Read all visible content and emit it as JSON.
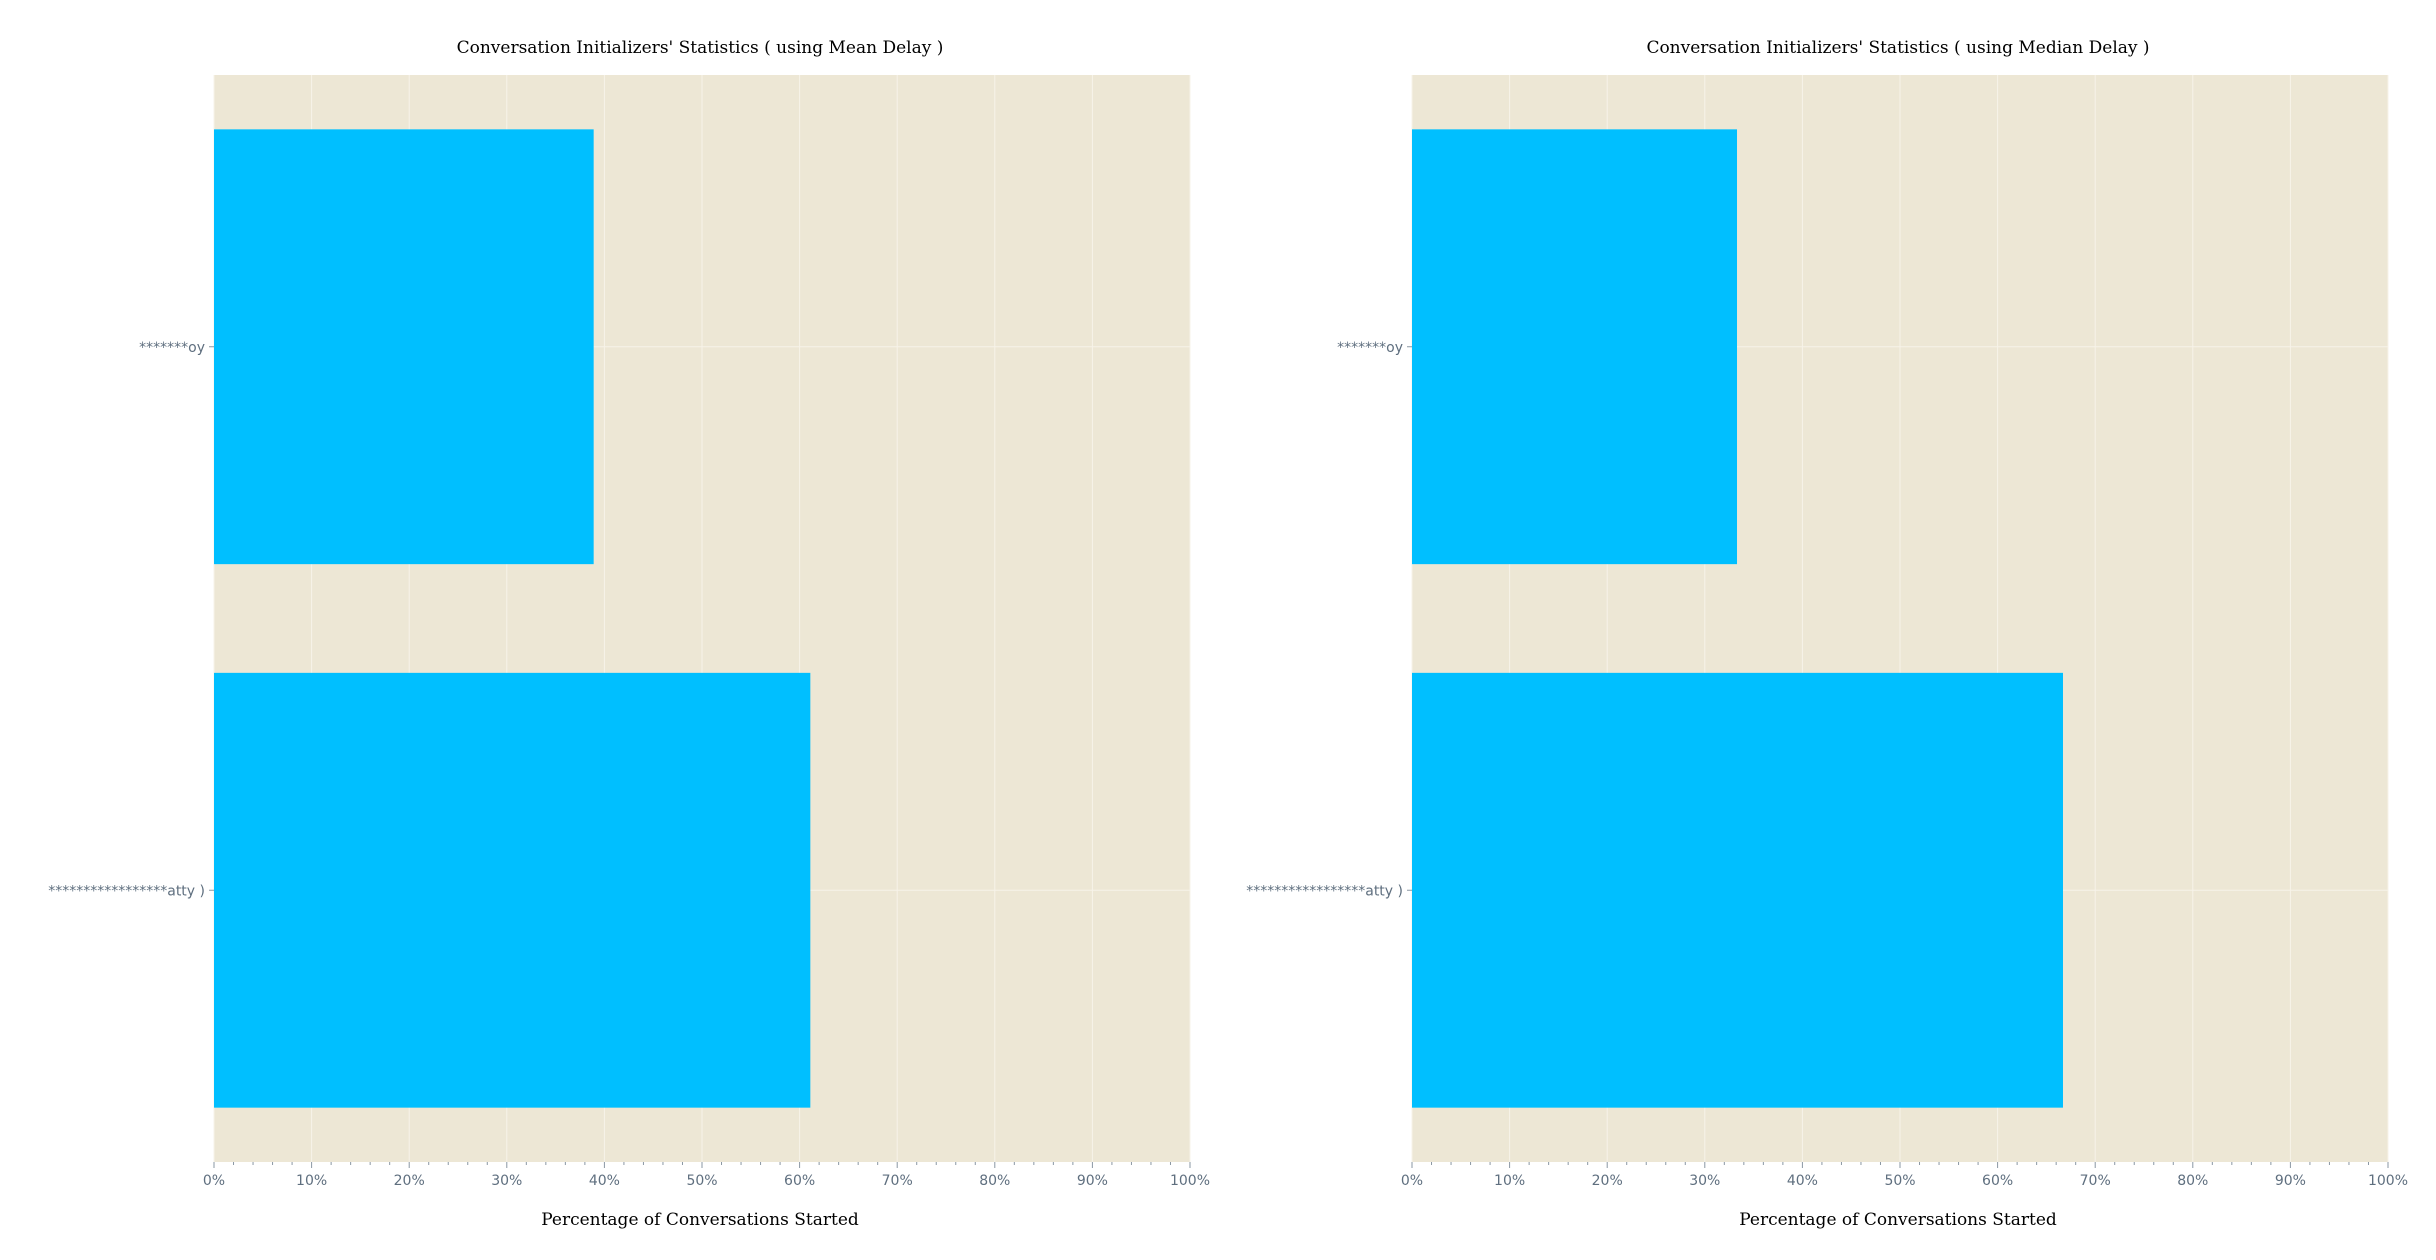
{
  "colors": {
    "plot_background": "#ede7d5",
    "grid": "#f7f3e9",
    "bar": "#00bfff",
    "tick_text": "#5f6f7f",
    "tick_mark": "#8a97a3"
  },
  "chart_data": [
    {
      "type": "bar",
      "orientation": "horizontal",
      "title": "Conversation Initializers' Statistics ( using Mean Delay )",
      "xlabel": "Percentage of Conversations Started",
      "ylabel": "",
      "xlim": [
        0,
        100
      ],
      "x_ticks": [
        "0%",
        "10%",
        "20%",
        "30%",
        "40%",
        "50%",
        "60%",
        "70%",
        "80%",
        "90%",
        "100%"
      ],
      "categories": [
        "*******oy",
        "*****************atty )"
      ],
      "values": [
        38.9,
        61.1
      ],
      "grid": true,
      "legend": "none"
    },
    {
      "type": "bar",
      "orientation": "horizontal",
      "title": "Conversation Initializers' Statistics ( using Median Delay )",
      "xlabel": "Percentage of Conversations Started",
      "ylabel": "",
      "xlim": [
        0,
        100
      ],
      "x_ticks": [
        "0%",
        "10%",
        "20%",
        "30%",
        "40%",
        "50%",
        "60%",
        "70%",
        "80%",
        "90%",
        "100%"
      ],
      "categories": [
        "*******oy",
        "*****************atty )"
      ],
      "values": [
        33.3,
        66.7
      ],
      "grid": true,
      "legend": "none"
    }
  ]
}
